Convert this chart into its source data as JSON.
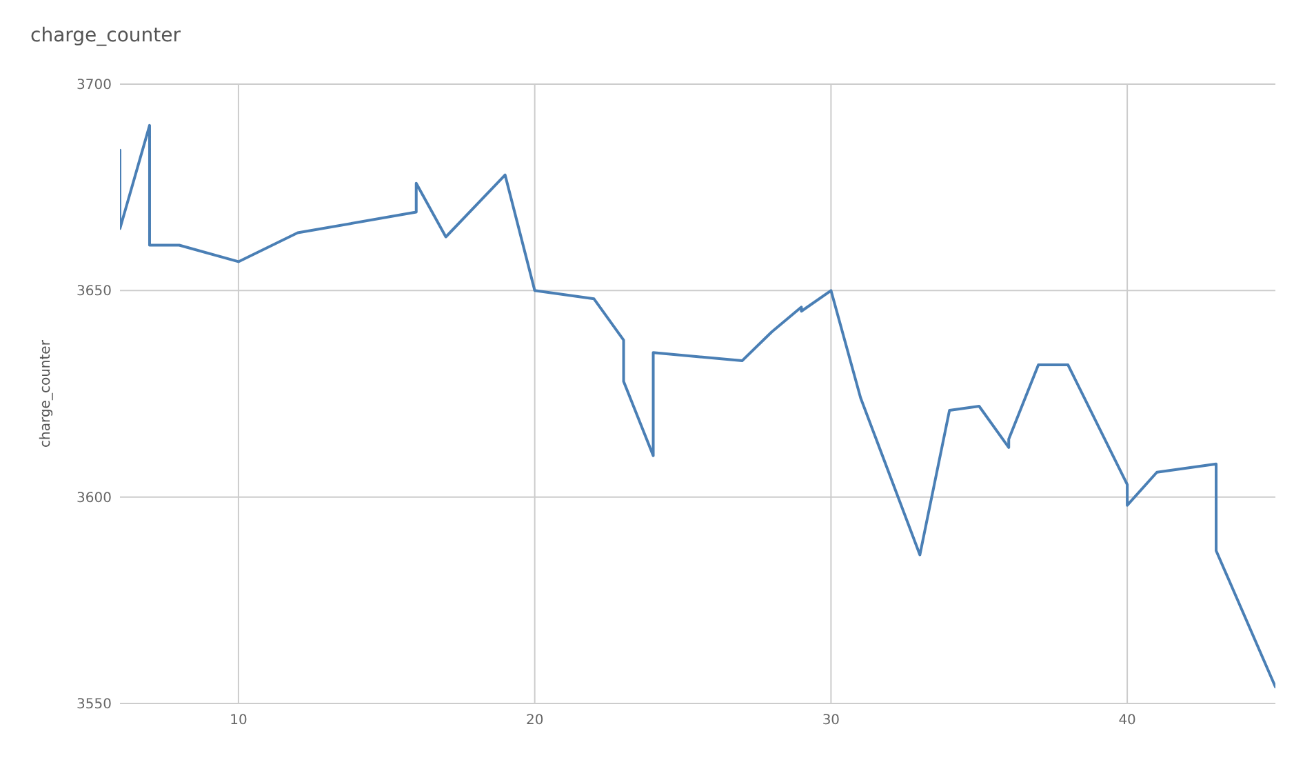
{
  "chart_data": {
    "type": "line",
    "title": "charge_counter",
    "ylabel": "charge_counter",
    "x": [
      6,
      6,
      7,
      7,
      8,
      10,
      12,
      16,
      16,
      17,
      19,
      20,
      22,
      23,
      23,
      24,
      24,
      27,
      28,
      29,
      29,
      30,
      31,
      33,
      34,
      35,
      36,
      36,
      37,
      38,
      40,
      40,
      41,
      43,
      43,
      45
    ],
    "series": [
      {
        "color": "#4a7fb5",
        "values": [
          3684,
          3665,
          3690,
          3661,
          3661,
          3657,
          3664,
          3669,
          3676,
          3663,
          3678,
          3650,
          3648,
          3638,
          3628,
          3610,
          3635,
          3633,
          3640,
          3646,
          3645,
          3650,
          3624,
          3586,
          3621,
          3622,
          3612,
          3614,
          3632,
          3632,
          3603,
          3598,
          3606,
          3608,
          3587,
          3554
        ]
      }
    ],
    "xlim": [
      6,
      45
    ],
    "xticks": [
      10,
      20,
      30,
      40
    ],
    "ylim": [
      3550,
      3700
    ],
    "yticks": [
      3550,
      3600,
      3650,
      3700
    ],
    "grid": true,
    "marker": "none",
    "line_style": "solid"
  }
}
